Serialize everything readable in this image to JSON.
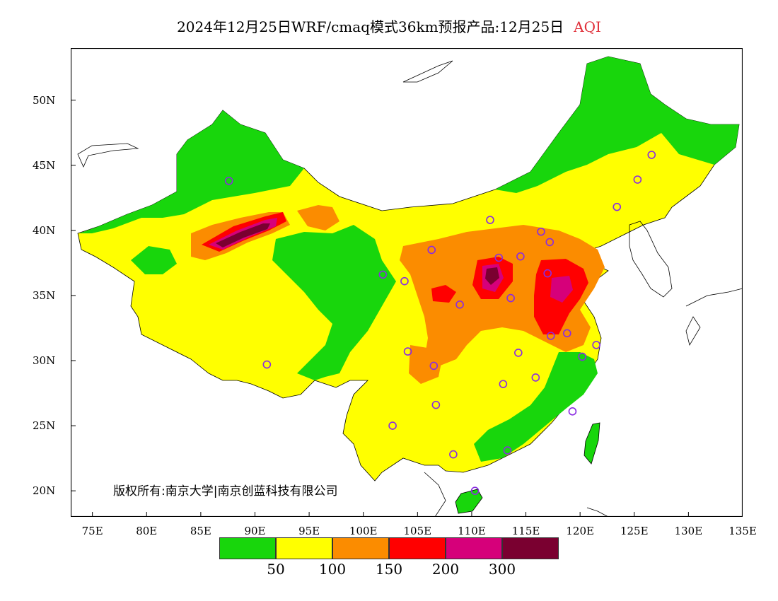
{
  "title": {
    "main": "2024年12月25日WRF/cmaq模式36km预报产品:12月25日",
    "product": "AQI",
    "product_color": "#e0303a"
  },
  "axes": {
    "lon_ticks": [
      "75E",
      "80E",
      "85E",
      "90E",
      "95E",
      "100E",
      "105E",
      "110E",
      "115E",
      "120E",
      "125E",
      "130E",
      "135E"
    ],
    "lat_ticks": [
      "50N",
      "45N",
      "40N",
      "35N",
      "30N",
      "25N",
      "20N"
    ],
    "lon_range": [
      73,
      135
    ],
    "lat_range": [
      18,
      54
    ]
  },
  "copyright": "版权所有:南京大学|南京创蓝科技有限公司",
  "legend": {
    "colors": [
      "#18d60c",
      "#ffff00",
      "#fb8c00",
      "#ff0000",
      "#d6007a",
      "#7a0030"
    ],
    "labels": [
      "50",
      "100",
      "150",
      "200",
      "300"
    ]
  },
  "palette": {
    "good": "#18d60c",
    "moderate": "#ffff00",
    "sensitive": "#fb8c00",
    "unhealthy": "#ff0000",
    "very_unhealthy": "#d6007a",
    "hazardous": "#7a0030",
    "station_ring": "#8a2be2"
  },
  "stations": [
    {
      "lon": 91.1,
      "lat": 29.7
    },
    {
      "lon": 87.6,
      "lat": 43.8
    },
    {
      "lon": 101.8,
      "lat": 36.6
    },
    {
      "lon": 103.8,
      "lat": 36.1
    },
    {
      "lon": 106.3,
      "lat": 38.5
    },
    {
      "lon": 111.7,
      "lat": 40.8
    },
    {
      "lon": 116.4,
      "lat": 39.9
    },
    {
      "lon": 117.2,
      "lat": 39.1
    },
    {
      "lon": 114.5,
      "lat": 38.0
    },
    {
      "lon": 112.5,
      "lat": 37.9
    },
    {
      "lon": 117.0,
      "lat": 36.7
    },
    {
      "lon": 113.6,
      "lat": 34.8
    },
    {
      "lon": 108.9,
      "lat": 34.3
    },
    {
      "lon": 117.3,
      "lat": 31.9
    },
    {
      "lon": 118.8,
      "lat": 32.1
    },
    {
      "lon": 121.5,
      "lat": 31.2
    },
    {
      "lon": 120.2,
      "lat": 30.3
    },
    {
      "lon": 114.3,
      "lat": 30.6
    },
    {
      "lon": 112.9,
      "lat": 28.2
    },
    {
      "lon": 115.9,
      "lat": 28.7
    },
    {
      "lon": 119.3,
      "lat": 26.1
    },
    {
      "lon": 113.3,
      "lat": 23.1
    },
    {
      "lon": 108.3,
      "lat": 22.8
    },
    {
      "lon": 110.3,
      "lat": 20.0
    },
    {
      "lon": 106.7,
      "lat": 26.6
    },
    {
      "lon": 102.7,
      "lat": 25.0
    },
    {
      "lon": 104.1,
      "lat": 30.7
    },
    {
      "lon": 106.5,
      "lat": 29.6
    },
    {
      "lon": 123.4,
      "lat": 41.8
    },
    {
      "lon": 125.3,
      "lat": 43.9
    },
    {
      "lon": 126.6,
      "lat": 45.8
    }
  ]
}
